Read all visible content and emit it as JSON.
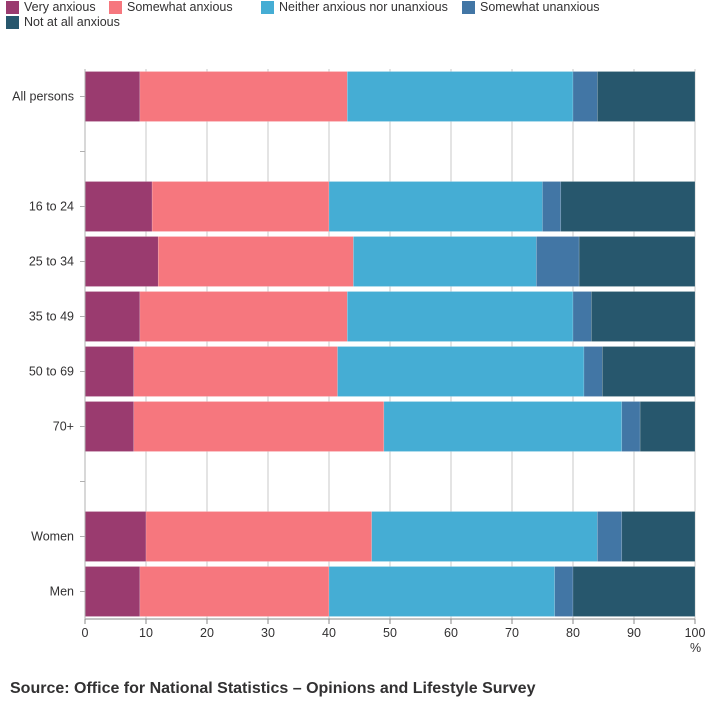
{
  "chart_data": {
    "type": "bar",
    "orientation": "horizontal",
    "stacked": true,
    "categories": [
      "All persons",
      "",
      "16 to 24",
      "25 to 34",
      "35 to 49",
      "50 to 69",
      "70+",
      "",
      "Women",
      "Men"
    ],
    "series": [
      {
        "name": "Very anxious",
        "color": "#9a3b6f",
        "values": [
          9,
          null,
          11,
          12,
          9,
          8,
          8,
          null,
          10,
          9
        ]
      },
      {
        "name": "Somewhat anxious",
        "color": "#f6777e",
        "values": [
          34,
          null,
          29,
          32,
          34,
          33.4,
          41,
          null,
          37,
          31
        ]
      },
      {
        "name": "Neither anxious nor unanxious",
        "color": "#45add4",
        "values": [
          37,
          null,
          35,
          30,
          37,
          40.4,
          39,
          null,
          37,
          37
        ]
      },
      {
        "name": "Somewhat unanxious",
        "color": "#4276a5",
        "values": [
          4,
          null,
          3,
          7,
          3,
          3,
          3,
          null,
          4,
          3
        ]
      },
      {
        "name": "Not at all anxious",
        "color": "#27576d",
        "values": [
          16,
          null,
          22,
          19,
          17,
          15.2,
          9,
          null,
          12,
          20
        ]
      }
    ],
    "xlim": [
      0,
      100
    ],
    "xticks": [
      "0",
      "10",
      "20",
      "30",
      "40",
      "50",
      "60",
      "70",
      "80",
      "90",
      "100"
    ],
    "xunit": "%",
    "grid": true,
    "legend_position": "top"
  },
  "source": "Source: Office for National Statistics – Opinions and Lifestyle Survey"
}
